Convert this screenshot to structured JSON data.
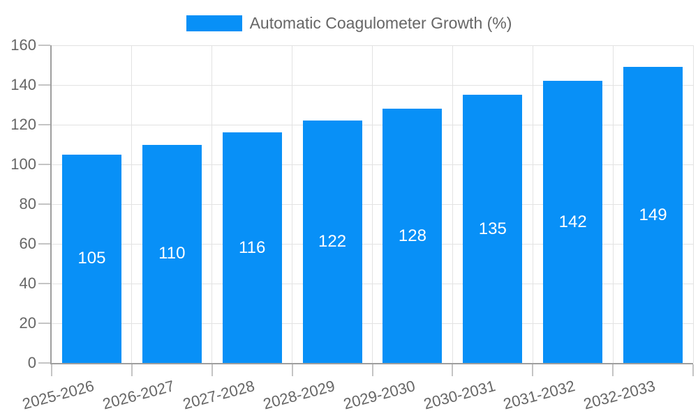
{
  "colors": {
    "bar": "#0890f7",
    "axis": "#9e9e9e",
    "grid": "#e2e2e2",
    "tick": "#c4c4c4",
    "text": "#666666",
    "value_label": "#ffffff",
    "background": "#ffffff"
  },
  "chart_data": {
    "type": "bar",
    "title": "",
    "categories": [
      "2025-2026",
      "2026-2027",
      "2027-2028",
      "2028-2029",
      "2029-2030",
      "2030-2031",
      "2031-2032",
      "2032-2033"
    ],
    "series": [
      {
        "name": "Automatic Coagulometer Growth (%)",
        "values": [
          105,
          110,
          116,
          122,
          128,
          135,
          142,
          149
        ]
      }
    ],
    "xlabel": "",
    "ylabel": "",
    "ylim": [
      0,
      160
    ],
    "yticks": [
      0,
      20,
      40,
      60,
      80,
      100,
      120,
      140,
      160
    ],
    "grid": true,
    "legend_position": "top",
    "value_label_position": "inside-center",
    "x_label_rotation_deg": -15
  }
}
